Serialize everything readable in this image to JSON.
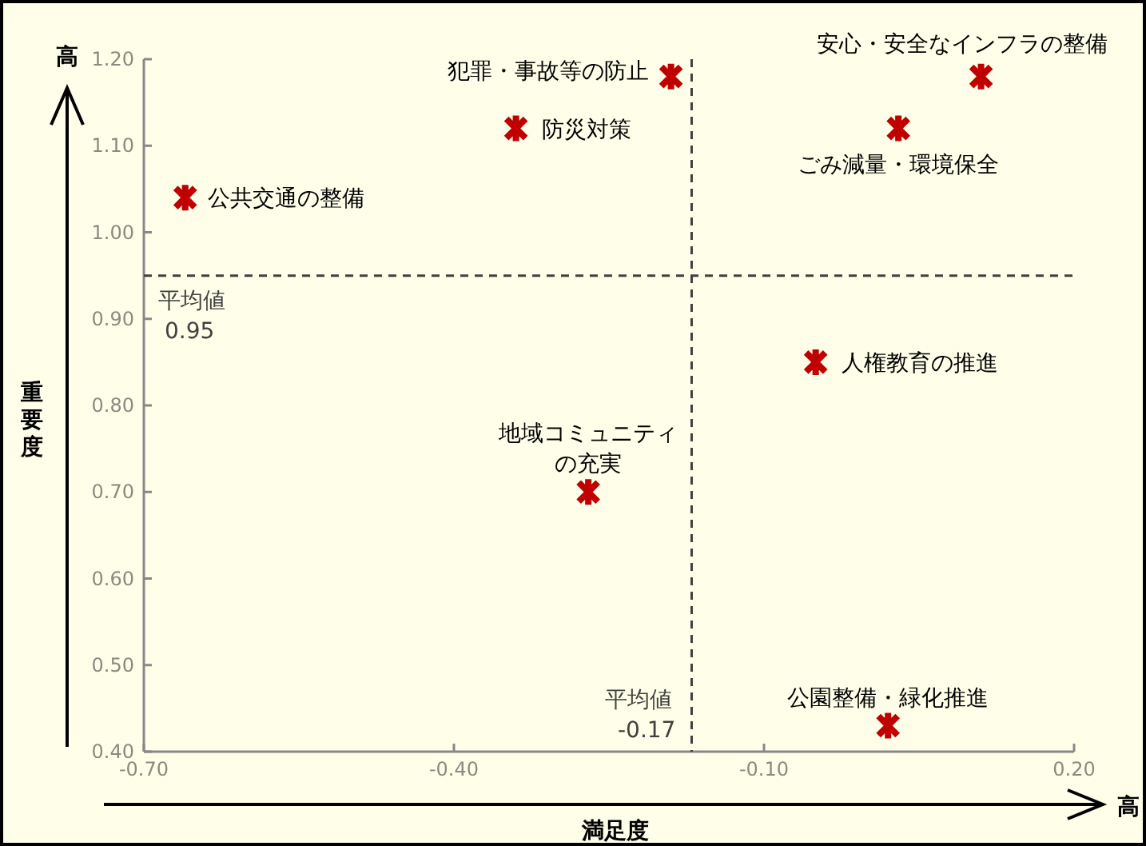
{
  "chart_data": {
    "type": "scatter",
    "xlabel": "満足度",
    "ylabel": "重要度",
    "xlim": [
      -0.7,
      0.2
    ],
    "xticks": [
      {
        "value": -0.7,
        "label": "-0.70"
      },
      {
        "value": -0.4,
        "label": "-0.40"
      },
      {
        "value": -0.1,
        "label": "-0.10"
      },
      {
        "value": 0.2,
        "label": "0.20"
      }
    ],
    "ylim": [
      0.4,
      1.2
    ],
    "yticks": [
      {
        "value": 0.4,
        "label": "0.40"
      },
      {
        "value": 0.5,
        "label": "0.50"
      },
      {
        "value": 0.6,
        "label": "0.60"
      },
      {
        "value": 0.7,
        "label": "0.70"
      },
      {
        "value": 0.8,
        "label": "0.80"
      },
      {
        "value": 0.9,
        "label": "0.90"
      },
      {
        "value": 1.0,
        "label": "1.00"
      },
      {
        "value": 1.1,
        "label": "1.10"
      },
      {
        "value": 1.2,
        "label": "1.20"
      }
    ],
    "grid": false,
    "legend": false,
    "marker": "cross",
    "series": [
      {
        "name": "公共交通の整備",
        "color": "#c00000",
        "x": [
          -0.66
        ],
        "values": [
          1.04
        ]
      },
      {
        "name": "防災対策",
        "color": "#c00000",
        "x": [
          -0.34
        ],
        "values": [
          1.12
        ]
      },
      {
        "name": "犯罪・事故等の防止",
        "color": "#c00000",
        "x": [
          -0.19
        ],
        "values": [
          1.18
        ]
      },
      {
        "name": "安心・安全なインフラの整備",
        "color": "#c00000",
        "x": [
          0.11
        ],
        "values": [
          1.18
        ]
      },
      {
        "name": "ごみ減量・環境保全",
        "color": "#c00000",
        "x": [
          0.03
        ],
        "values": [
          1.12
        ]
      },
      {
        "name": "人権教育の推進",
        "color": "#c00000",
        "x": [
          -0.05
        ],
        "values": [
          0.85
        ]
      },
      {
        "name": "地域コミュニティの充実",
        "color": "#c00000",
        "x": [
          -0.27
        ],
        "values": [
          0.7
        ]
      },
      {
        "name": "公園整備・緑化推進",
        "color": "#c00000",
        "x": [
          0.02
        ],
        "values": [
          0.43
        ]
      }
    ],
    "ref_lines": [
      {
        "axis": "y",
        "value": 0.95,
        "label": "平均値\n0.95",
        "line_style": "dashed",
        "color": "#404040"
      },
      {
        "axis": "x",
        "value": -0.17,
        "label": "平均値\n-0.17",
        "line_style": "dashed",
        "color": "#404040"
      }
    ],
    "annotations": [
      "高",
      "高"
    ]
  }
}
